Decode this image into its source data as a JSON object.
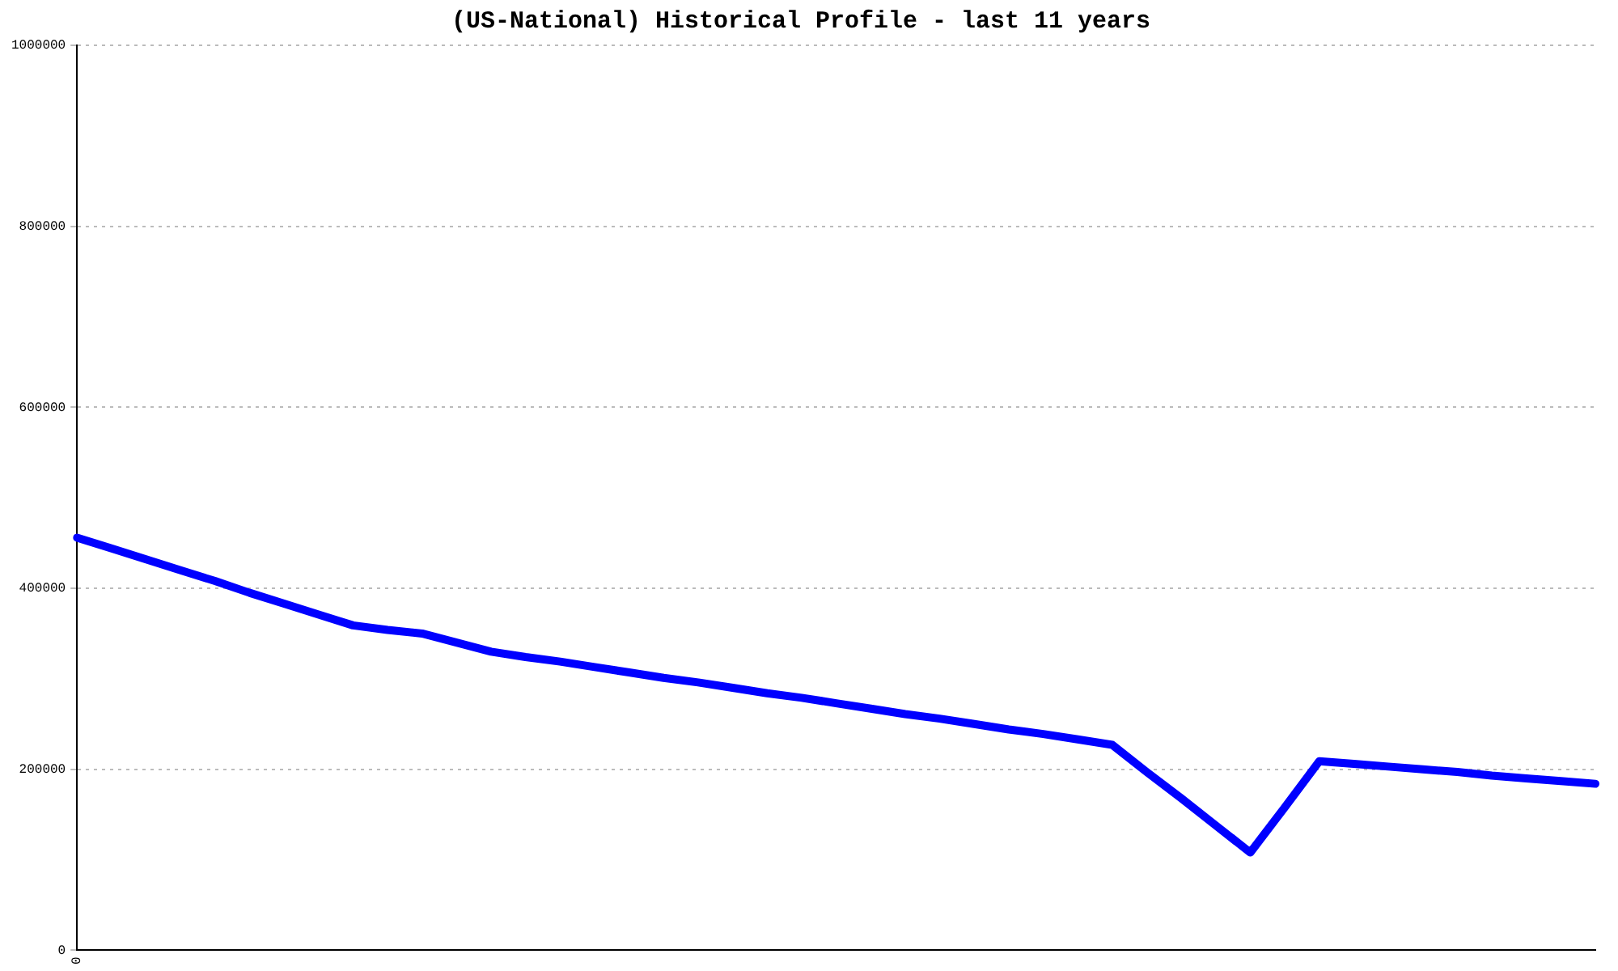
{
  "chart_data": {
    "type": "line",
    "title": "(US-National) Historical Profile - last 11 years",
    "categories": [
      "0",
      null,
      null,
      null,
      null,
      null,
      null,
      null,
      null,
      null,
      null,
      null,
      null,
      null,
      null,
      null,
      null,
      null,
      null,
      null,
      null,
      null,
      null,
      null,
      null,
      null,
      null,
      null,
      null,
      null,
      null,
      null,
      null,
      null,
      null,
      null,
      null,
      null,
      null,
      null,
      null,
      null,
      null,
      null,
      null
    ],
    "series": [
      {
        "color": "#0000ff",
        "values": [
          456000,
          444000,
          432000,
          420000,
          408000,
          395000,
          383000,
          371000,
          359000,
          354000,
          350000,
          340000,
          330000,
          324000,
          319000,
          313000,
          307000,
          301000,
          296000,
          290000,
          284000,
          279000,
          273000,
          267000,
          261000,
          256000,
          250000,
          244000,
          239000,
          233000,
          227000,
          197000,
          168000,
          138000,
          108000,
          158000,
          209000,
          206000,
          203000,
          200000,
          197000,
          193000,
          190000,
          187000,
          184000
        ]
      }
    ],
    "ylim": [
      0,
      1000000
    ],
    "yticks": [
      0,
      200000,
      400000,
      600000,
      800000,
      1000000
    ],
    "grid": "y",
    "legend": false,
    "marker": "none",
    "line_style": "solid"
  }
}
